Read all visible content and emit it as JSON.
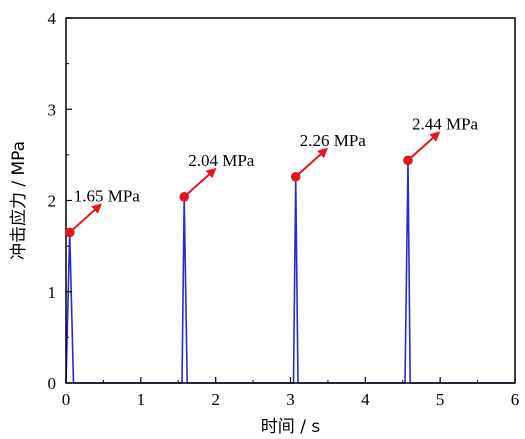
{
  "chart_data": {
    "type": "line",
    "xlabel": "时间 / s",
    "ylabel": "冲击应力 / MPa",
    "xlim": [
      0,
      6
    ],
    "ylim": [
      0,
      4
    ],
    "xticks": [
      "0",
      "1",
      "2",
      "3",
      "4",
      "5",
      "6"
    ],
    "yticks": [
      "0",
      "1",
      "2",
      "3",
      "4"
    ],
    "grid": false,
    "series": [
      {
        "color": "#2b2bd6",
        "points": [
          [
            0.0,
            0.0
          ],
          [
            0.05,
            1.65
          ],
          [
            0.1,
            0.0
          ],
          [
            1.52,
            0.0
          ],
          [
            1.55,
            0.0
          ],
          [
            1.58,
            2.04
          ],
          [
            1.62,
            0.0
          ],
          [
            3.0,
            0.0
          ],
          [
            3.04,
            0.0
          ],
          [
            3.07,
            2.26
          ],
          [
            3.1,
            0.0
          ],
          [
            4.5,
            0.0
          ],
          [
            4.53,
            0.0
          ],
          [
            4.57,
            2.44
          ],
          [
            4.6,
            0.0
          ],
          [
            6.0,
            0.0
          ]
        ]
      }
    ],
    "peaks": [
      {
        "x": 0.05,
        "y": 1.65,
        "label": "1.65 MPa"
      },
      {
        "x": 1.58,
        "y": 2.04,
        "label": "2.04 MPa"
      },
      {
        "x": 3.07,
        "y": 2.26,
        "label": "2.26 MPa"
      },
      {
        "x": 4.57,
        "y": 2.44,
        "label": "2.44 MPa"
      }
    ],
    "marker_color": "#e8141b",
    "arrow_color": "#e8141b"
  }
}
